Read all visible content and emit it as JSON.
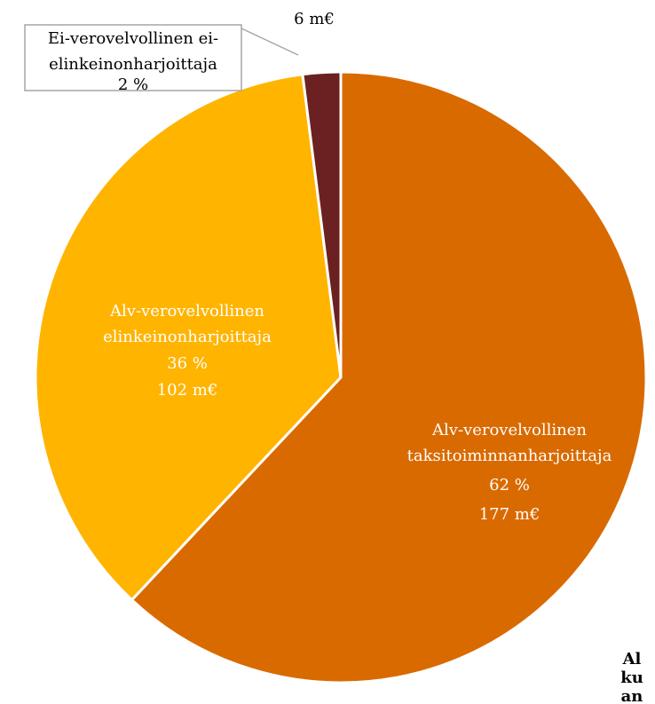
{
  "chart_data": {
    "type": "pie",
    "categories": [
      "Alv-verovelvollinen\ntaksitoiminnanharjoittaja",
      "Alv-verovelvollinen\nelinkeinonharjoittaja",
      "Ei-verovelvollinen ei-\nelinkeinonharjoittaja"
    ],
    "values": [
      62,
      36,
      2
    ],
    "value_labels": [
      "62 %",
      "36 %",
      "2 %"
    ],
    "amounts": [
      177,
      102,
      6
    ],
    "amount_labels": [
      "177 m€",
      "102 m€",
      "6 m€"
    ],
    "colors": [
      "#d96a00",
      "#ffb400",
      "#6b2121"
    ],
    "label_colors": [
      "#ffffff",
      "#ffffff",
      "#000000"
    ],
    "annotation": [
      "Al",
      "ku",
      "an"
    ]
  }
}
